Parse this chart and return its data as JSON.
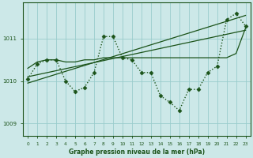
{
  "background_color": "#cce8e8",
  "grid_color": "#99cccc",
  "line_color": "#1a5218",
  "xlabel": "Graphe pression niveau de la mer (hPa)",
  "xlim": [
    -0.5,
    23.5
  ],
  "ylim": [
    1008.7,
    1011.85
  ],
  "yticks": [
    1009,
    1010,
    1011
  ],
  "xticks": [
    0,
    1,
    2,
    3,
    4,
    5,
    6,
    7,
    8,
    9,
    10,
    11,
    12,
    13,
    14,
    15,
    16,
    17,
    18,
    19,
    20,
    21,
    22,
    23
  ],
  "series": [
    {
      "x": [
        0,
        1,
        2,
        3,
        4,
        5,
        6,
        7,
        8,
        9,
        10,
        11,
        12,
        13,
        14,
        15,
        16,
        17,
        18,
        19,
        20,
        21,
        22,
        23
      ],
      "y": [
        1010.05,
        1010.4,
        1010.5,
        1010.5,
        1010.0,
        1009.75,
        1009.85,
        1010.2,
        1011.05,
        1011.05,
        1010.55,
        1010.5,
        1010.2,
        1010.2,
        1009.65,
        1009.5,
        1009.3,
        1009.8,
        1009.8,
        1010.2,
        1010.35,
        1011.45,
        1011.6,
        1011.3
      ],
      "linestyle": ":",
      "linewidth": 1.0,
      "marker": "D",
      "markersize": 2.5
    },
    {
      "x": [
        0,
        1,
        2,
        3,
        4,
        5,
        6,
        7,
        8,
        9,
        10,
        11,
        12,
        13,
        14,
        15,
        16,
        17,
        18,
        19,
        20,
        21,
        22,
        23
      ],
      "y": [
        1010.3,
        1010.45,
        1010.5,
        1010.5,
        1010.45,
        1010.45,
        1010.5,
        1010.5,
        1010.55,
        1010.55,
        1010.55,
        1010.55,
        1010.55,
        1010.55,
        1010.55,
        1010.55,
        1010.55,
        1010.55,
        1010.55,
        1010.55,
        1010.55,
        1010.55,
        1010.65,
        1011.25
      ],
      "linestyle": "-",
      "linewidth": 0.9,
      "marker": null,
      "markersize": 0
    },
    {
      "x": [
        0,
        23
      ],
      "y": [
        1009.95,
        1011.55
      ],
      "linestyle": "-",
      "linewidth": 0.9,
      "marker": null,
      "markersize": 0
    },
    {
      "x": [
        0,
        23
      ],
      "y": [
        1010.1,
        1011.2
      ],
      "linestyle": "-",
      "linewidth": 0.9,
      "marker": null,
      "markersize": 0
    }
  ]
}
